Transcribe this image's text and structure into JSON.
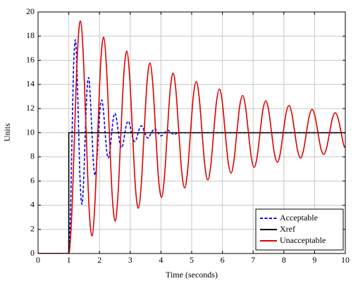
{
  "chart_data": {
    "type": "line",
    "xlabel": "Time (seconds)",
    "ylabel": "Units",
    "xlim": [
      0,
      10
    ],
    "ylim": [
      0,
      20
    ],
    "xticks": [
      0,
      1,
      2,
      3,
      4,
      5,
      6,
      7,
      8,
      9,
      10
    ],
    "yticks": [
      0,
      2,
      4,
      6,
      8,
      10,
      12,
      14,
      16,
      18,
      20
    ],
    "grid": true,
    "legend": "lower right",
    "series": [
      {
        "name": "Acceptable",
        "color": "#0000ff",
        "dash": true,
        "x": [
          0,
          1,
          1.054,
          1.108,
          1.161,
          1.215,
          1.269,
          1.323,
          1.376,
          1.43,
          1.484,
          1.538,
          1.591,
          1.645,
          1.699,
          1.753,
          1.806,
          1.86,
          1.914,
          1.968,
          2.021,
          2.075,
          2.129,
          2.183,
          2.236,
          2.29,
          2.344,
          2.398,
          2.451,
          2.505,
          2.559,
          2.613,
          2.666,
          2.72,
          2.774,
          2.828,
          2.881,
          2.935,
          2.989,
          3.043,
          3.096,
          3.15,
          3.204,
          3.258,
          3.311,
          3.365,
          3.419,
          3.473,
          3.526,
          3.58,
          3.688,
          3.795,
          3.903,
          4.01,
          4.118,
          4.225,
          4.333,
          4.44,
          4.548,
          10
        ],
        "values": [
          0,
          0,
          3.38,
          10,
          15.81,
          17.7,
          15.1,
          10,
          5.52,
          4.07,
          6.07,
          10,
          13.45,
          14.57,
          13.03,
          10,
          7.34,
          6.48,
          7.67,
          10,
          12.05,
          12.71,
          11.8,
          10,
          8.42,
          7.91,
          8.62,
          10,
          11.21,
          11.61,
          11.06,
          10,
          9.07,
          8.76,
          9.18,
          10,
          10.72,
          10.95,
          10.63,
          10,
          9.45,
          9.27,
          9.51,
          10,
          10.43,
          10.57,
          10.37,
          10,
          9.67,
          9.56,
          10,
          10.34,
          10,
          9.74,
          10,
          10.2,
          10,
          9.85,
          10,
          10
        ]
      },
      {
        "name": "Xref",
        "color": "#000000",
        "dash": false,
        "x": [
          0,
          1,
          1,
          10
        ],
        "values": [
          0,
          0,
          10,
          10
        ]
      },
      {
        "name": "Unacceptable",
        "color": "#dd0000",
        "dash": false,
        "x": [
          0,
          1,
          1.094,
          1.189,
          1.283,
          1.377,
          1.472,
          1.566,
          1.66,
          1.754,
          1.849,
          1.943,
          2.037,
          2.132,
          2.226,
          2.32,
          2.415,
          2.509,
          2.603,
          2.697,
          2.792,
          2.886,
          2.98,
          3.075,
          3.169,
          3.263,
          3.358,
          3.452,
          3.546,
          3.64,
          3.735,
          3.829,
          3.923,
          4.018,
          4.112,
          4.206,
          4.301,
          4.395,
          4.489,
          4.583,
          4.678,
          4.772,
          4.866,
          4.961,
          5.055,
          5.149,
          5.244,
          5.338,
          5.432,
          5.526,
          5.621,
          5.715,
          5.809,
          5.904,
          5.998,
          6.092,
          6.187,
          6.281,
          6.375,
          6.469,
          6.564,
          6.658,
          6.752,
          6.847,
          6.941,
          7.035,
          7.13,
          7.224,
          7.318,
          7.412,
          7.507,
          7.601,
          7.695,
          7.79,
          7.884,
          7.978,
          8.073,
          8.167,
          8.261,
          8.355,
          8.45,
          8.544,
          8.638,
          8.733,
          8.827,
          8.921,
          9.016,
          9.11,
          9.204,
          9.298,
          9.393,
          9.487,
          9.581,
          9.676,
          9.77,
          9.864,
          9.958,
          10
        ],
        "values": [
          0,
          0,
          3.07,
          10,
          16.67,
          19.25,
          16.41,
          10,
          3.83,
          1.45,
          4.07,
          10,
          15.7,
          17.91,
          15.48,
          10,
          4.73,
          2.69,
          4.93,
          10,
          14.88,
          16.76,
          14.69,
          10,
          5.49,
          3.75,
          5.67,
          10,
          14.17,
          15.78,
          14.01,
          10,
          6.15,
          4.65,
          6.29,
          10,
          13.57,
          14.94,
          13.43,
          10,
          6.7,
          5.43,
          6.83,
          10,
          13.05,
          14.23,
          12.93,
          10,
          7.18,
          6.09,
          7.29,
          10,
          12.61,
          13.62,
          12.51,
          10,
          7.59,
          6.66,
          7.68,
          10,
          12.23,
          13.09,
          12.14,
          10,
          7.94,
          7.14,
          8.02,
          10,
          11.91,
          12.64,
          11.83,
          10,
          8.24,
          7.56,
          8.31,
          10,
          11.63,
          12.26,
          11.57,
          10,
          8.49,
          7.91,
          8.55,
          10,
          11.39,
          11.93,
          11.34,
          10,
          8.71,
          8.21,
          8.76,
          10,
          11.19,
          11.65,
          11.15,
          10,
          8.9,
          8.75
        ]
      }
    ]
  }
}
